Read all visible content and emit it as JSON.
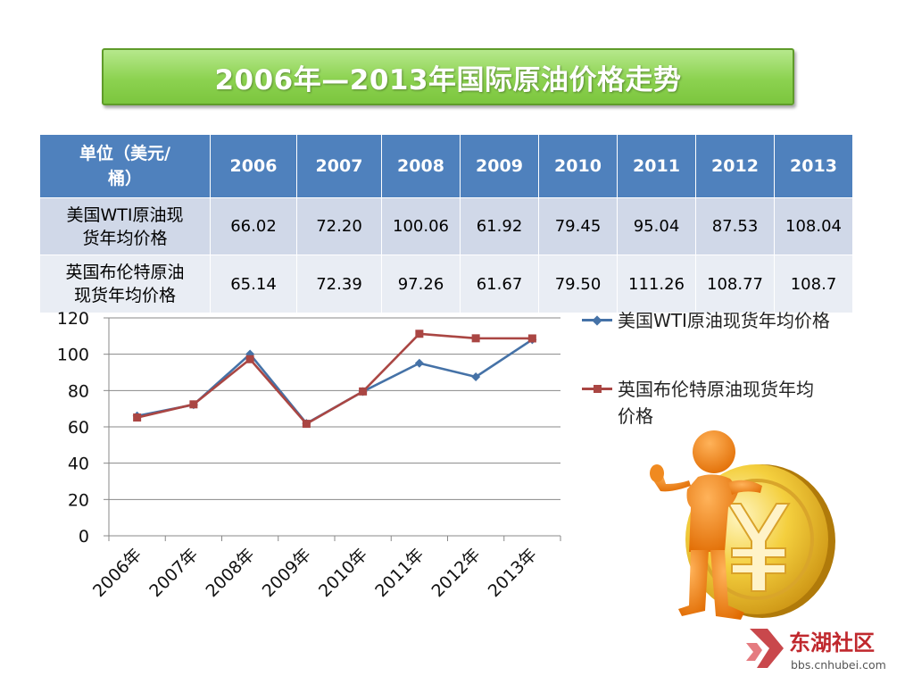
{
  "title": "2006年—2013年国际原油价格走势",
  "table": {
    "header_unit_line1": "单位（美元/",
    "header_unit_line2": "桶）",
    "years": [
      "2006",
      "2007",
      "2008",
      "2009",
      "2010",
      "2011",
      "2012",
      "2013"
    ],
    "rows": [
      {
        "label_line1": "美国WTI原油现",
        "label_line2": "货年均价格",
        "values": [
          "66.02",
          "72.20",
          "100.06",
          "61.92",
          "79.45",
          "95.04",
          "87.53",
          "108.04"
        ]
      },
      {
        "label_line1": "英国布伦特原油",
        "label_line2": "现货年均价格",
        "values": [
          "65.14",
          "72.39",
          "97.26",
          "61.67",
          "79.50",
          "111.26",
          "108.77",
          "108.7"
        ]
      }
    ]
  },
  "chart_data": {
    "type": "line",
    "categories": [
      "2006年",
      "2007年",
      "2008年",
      "2009年",
      "2010年",
      "2011年",
      "2012年",
      "2013年"
    ],
    "y_ticks": [
      "0",
      "20",
      "40",
      "60",
      "80",
      "100",
      "120"
    ],
    "ylim": [
      0,
      120
    ],
    "grid": true,
    "legend_position": "right",
    "series": [
      {
        "name": "美国WTI原油现货年均价格",
        "values": [
          66.02,
          72.2,
          100.06,
          61.92,
          79.45,
          95.04,
          87.53,
          108.04
        ],
        "color": "#4572a7",
        "marker": "diamond"
      },
      {
        "name": "英国布伦特原油现货年均价格",
        "values": [
          65.14,
          72.39,
          97.26,
          61.67,
          79.5,
          111.26,
          108.77,
          108.7
        ],
        "color": "#aa4643",
        "marker": "square"
      }
    ]
  },
  "legend": {
    "wti_label": "美国WTI原油现货年均价格",
    "brent_label_line1": "英国布伦特原油现货年均",
    "brent_label_line2": "价格"
  },
  "illustration": {
    "icon": "figure-with-yuan-coin-icon",
    "coin_color": "#f0c030",
    "figure_color": "#f07c10"
  },
  "watermark": {
    "brand": "东湖社区",
    "url": "bbs.cnhubei.com",
    "color": "#c0282d"
  }
}
